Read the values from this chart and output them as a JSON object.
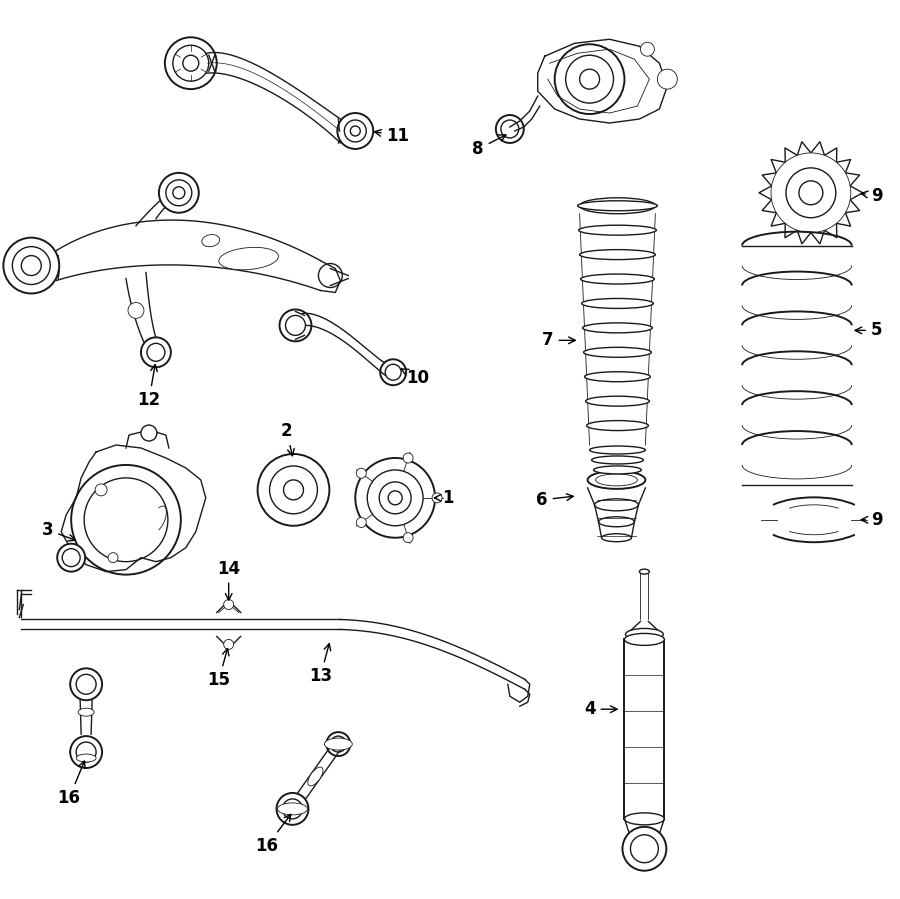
{
  "background": "#ffffff",
  "line_color": "#1a1a1a",
  "fig_width": 9.0,
  "fig_height": 8.99,
  "dpi": 100,
  "lw": 1.0,
  "lw_thin": 0.6,
  "lw_thick": 1.4
}
